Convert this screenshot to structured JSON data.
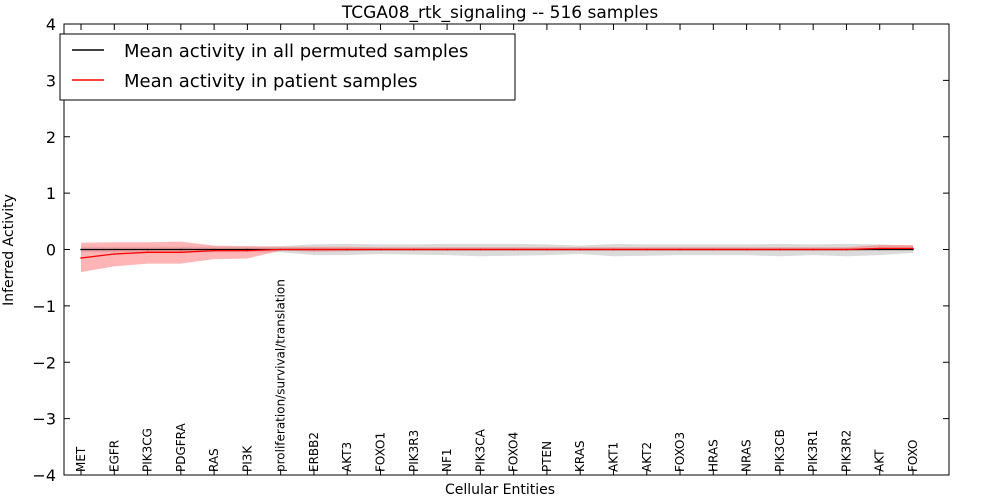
{
  "chart_data": {
    "type": "line",
    "title": "TCGA08_rtk_signaling -- 516 samples",
    "xlabel": "Cellular Entities",
    "ylabel": "Inferred Activity",
    "ylim": [
      -4,
      4
    ],
    "yticks": [
      -4,
      -3,
      -2,
      -1,
      0,
      1,
      2,
      3,
      4
    ],
    "ytick_labels": [
      "−4",
      "−3",
      "−2",
      "−1",
      "0",
      "1",
      "2",
      "3",
      "4"
    ],
    "categories": [
      "MET",
      "EGFR",
      "PIK3CG",
      "PDGFRA",
      "RAS",
      "PI3K",
      "proliferation/survival/translation",
      "ERBB2",
      "AKT3",
      "FOXO1",
      "PIK3R3",
      "NF1",
      "PIK3CA",
      "FOXO4",
      "PTEN",
      "KRAS",
      "AKT1",
      "AKT2",
      "FOXO3",
      "HRAS",
      "NRAS",
      "PIK3CB",
      "PIK3R1",
      "PIK3R2",
      "AKT",
      "FOXO"
    ],
    "legend_position": "top-left",
    "series": [
      {
        "name": "Mean activity in all permuted samples",
        "color": "#000000",
        "band_color": "#b0b0b0",
        "values": [
          0.0,
          0.0,
          0.0,
          0.0,
          0.0,
          0.0,
          0.0,
          0.0,
          0.0,
          0.0,
          0.0,
          0.0,
          0.0,
          0.0,
          0.0,
          0.0,
          0.0,
          0.0,
          0.0,
          0.0,
          0.0,
          0.0,
          0.0,
          0.0,
          0.0,
          0.0
        ],
        "lower": [
          -0.05,
          -0.05,
          -0.05,
          -0.05,
          -0.05,
          -0.05,
          -0.05,
          -0.1,
          -0.1,
          -0.08,
          -0.09,
          -0.1,
          -0.12,
          -0.11,
          -0.1,
          -0.08,
          -0.12,
          -0.11,
          -0.1,
          -0.1,
          -0.1,
          -0.12,
          -0.1,
          -0.12,
          -0.1,
          -0.06
        ],
        "upper": [
          0.05,
          0.05,
          0.05,
          0.05,
          0.05,
          0.05,
          0.06,
          0.09,
          0.1,
          0.09,
          0.09,
          0.1,
          0.1,
          0.1,
          0.09,
          0.07,
          0.1,
          0.09,
          0.09,
          0.09,
          0.09,
          0.1,
          0.09,
          0.1,
          0.09,
          0.07
        ]
      },
      {
        "name": "Mean activity in patient samples",
        "color": "#ff0000",
        "band_color": "#ff6b6b",
        "values": [
          -0.15,
          -0.08,
          -0.05,
          -0.05,
          -0.02,
          -0.02,
          0.0,
          0.0,
          0.0,
          0.0,
          0.0,
          0.0,
          0.0,
          0.0,
          0.0,
          0.0,
          0.0,
          0.0,
          0.0,
          0.0,
          0.0,
          0.0,
          0.0,
          0.0,
          0.02,
          0.02
        ],
        "lower": [
          -0.4,
          -0.3,
          -0.25,
          -0.25,
          -0.17,
          -0.16,
          -0.02,
          -0.04,
          -0.03,
          -0.02,
          -0.02,
          -0.02,
          -0.02,
          -0.02,
          -0.02,
          -0.02,
          -0.02,
          -0.02,
          -0.02,
          -0.02,
          -0.02,
          -0.02,
          -0.02,
          -0.02,
          -0.01,
          -0.01
        ],
        "upper": [
          0.12,
          0.13,
          0.13,
          0.14,
          0.07,
          0.06,
          0.05,
          0.05,
          0.05,
          0.04,
          0.04,
          0.04,
          0.04,
          0.04,
          0.04,
          0.04,
          0.04,
          0.04,
          0.04,
          0.04,
          0.04,
          0.04,
          0.04,
          0.04,
          0.08,
          0.08
        ]
      }
    ]
  }
}
